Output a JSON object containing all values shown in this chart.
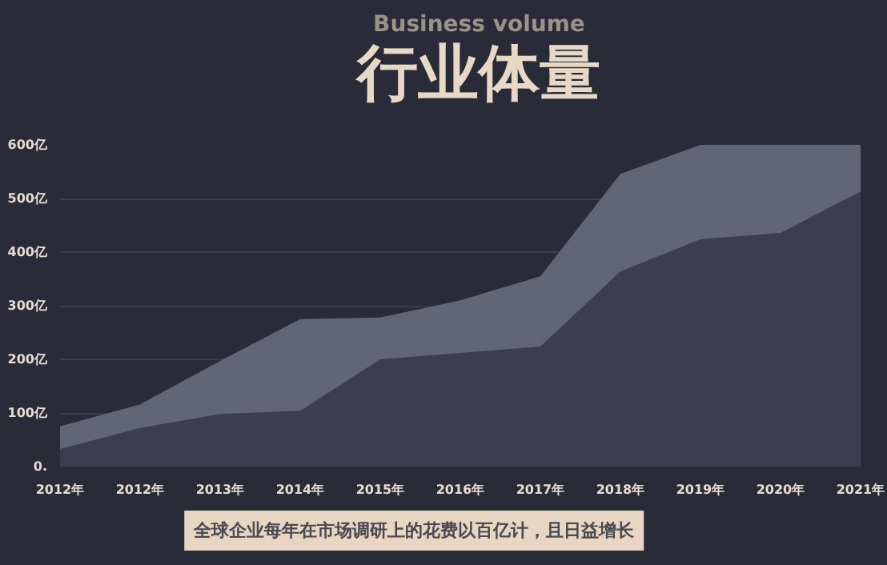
{
  "chart_data": {
    "type": "area",
    "title": "行业体量",
    "subtitle": "Business volume",
    "annotations": [
      "全球企业每年在市场调研上的花费以百亿计，且日益增长"
    ],
    "categories": [
      "2012年",
      "2012年",
      "2013年",
      "2014年",
      "2015年",
      "2016年",
      "2017年",
      "2018年",
      "2019年",
      "2020年",
      "2021年"
    ],
    "series": [
      {
        "color": "#626575",
        "values": [
          75,
          116,
          197,
          275,
          278,
          310,
          355,
          546,
          600,
          600,
          600
        ]
      },
      {
        "color": "#3c3e4f",
        "values": [
          33,
          72,
          98,
          104,
          200,
          212,
          224,
          364,
          424,
          436,
          513
        ]
      }
    ],
    "ylim": [
      0,
      600
    ],
    "yticks": [
      {
        "value": 0,
        "label": "0."
      },
      {
        "value": 100,
        "label": "100亿"
      },
      {
        "value": 200,
        "label": "200亿"
      },
      {
        "value": 300,
        "label": "300亿"
      },
      {
        "value": 400,
        "label": "400亿"
      },
      {
        "value": 500,
        "label": "500亿"
      },
      {
        "value": 600,
        "label": "600亿"
      }
    ],
    "grid": "y"
  }
}
